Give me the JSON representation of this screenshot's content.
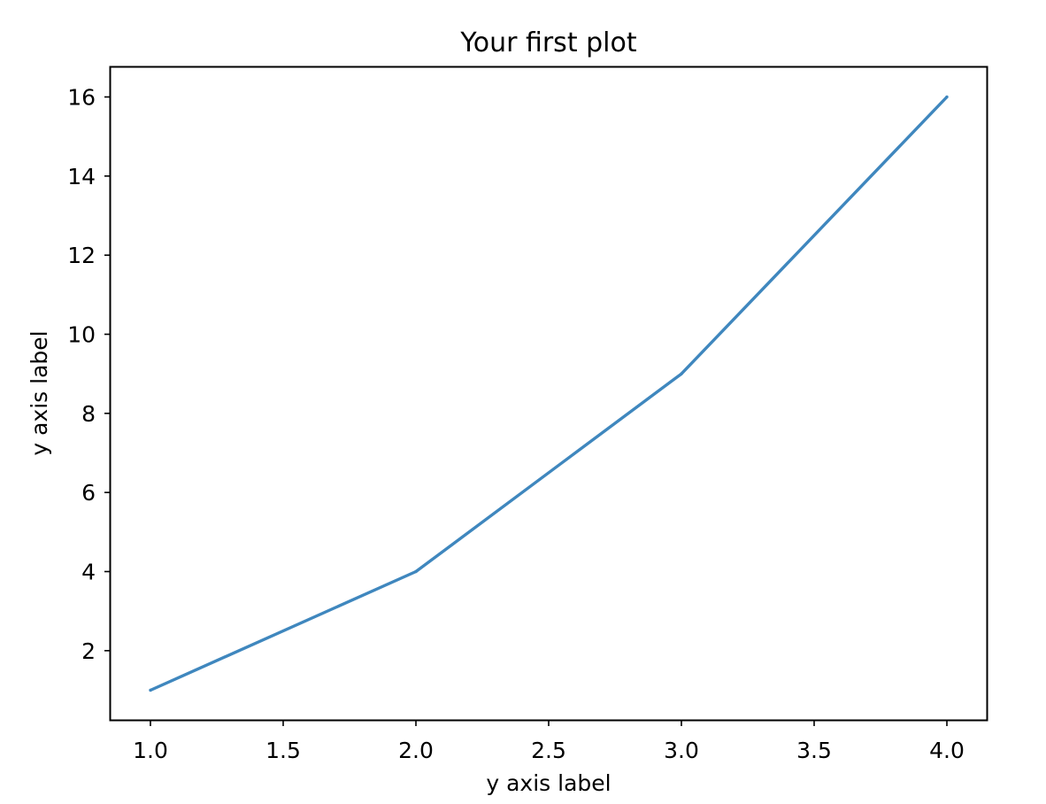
{
  "chart_data": {
    "type": "line",
    "title": "Your first plot",
    "xlabel": "y axis label",
    "ylabel": "y axis label",
    "x": [
      1,
      2,
      3,
      4
    ],
    "series": [
      {
        "values": [
          1,
          4,
          9,
          16
        ]
      }
    ],
    "xlim": [
      0.85,
      4.15
    ],
    "ylim": [
      0.25,
      16.75
    ],
    "xticks": [
      "1.0",
      "1.5",
      "2.0",
      "2.5",
      "3.0",
      "3.5",
      "4.0"
    ],
    "yticks": [
      "2",
      "4",
      "6",
      "8",
      "10",
      "12",
      "14",
      "16"
    ],
    "grid": false,
    "colors": {
      "line": "#3f87be",
      "axes": "#000000"
    }
  }
}
